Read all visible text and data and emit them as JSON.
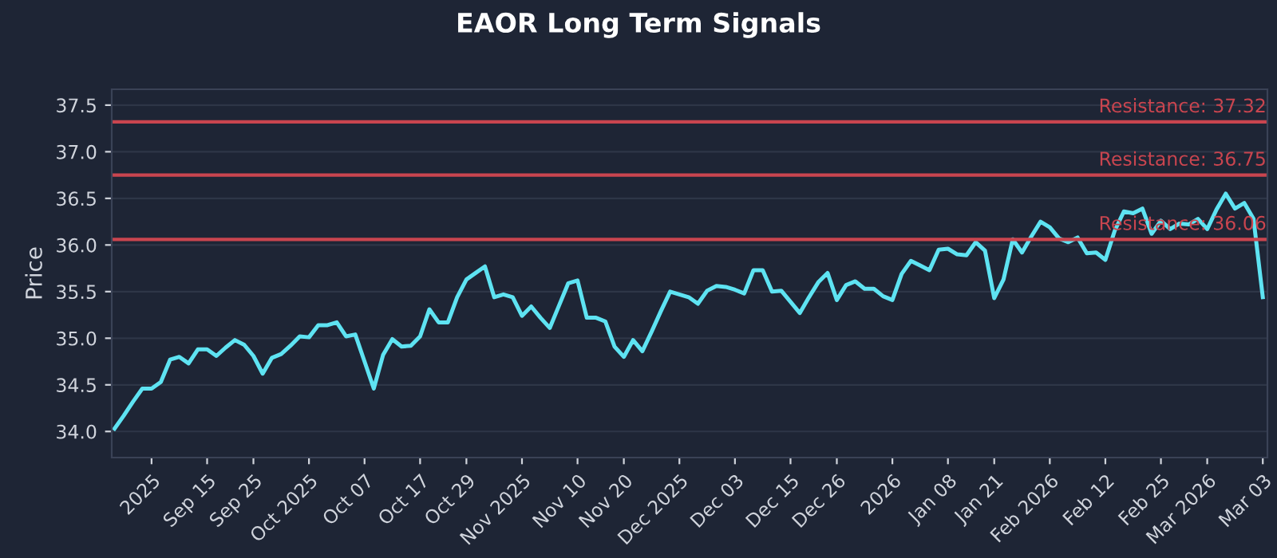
{
  "chart_data": {
    "type": "line",
    "title": "EAOR Long Term Signals",
    "ylabel": "Price",
    "categories": [
      null,
      null,
      null,
      null,
      "2025",
      null,
      null,
      null,
      null,
      null,
      "Sep 15",
      null,
      null,
      null,
      null,
      "Sep 25",
      null,
      null,
      null,
      null,
      null,
      "Oct 2025",
      null,
      null,
      null,
      null,
      null,
      "Oct 07",
      null,
      null,
      null,
      null,
      null,
      "Oct 17",
      null,
      null,
      null,
      null,
      "Oct 29",
      null,
      null,
      null,
      null,
      null,
      "Nov 2025",
      null,
      null,
      null,
      null,
      null,
      "Nov 10",
      null,
      null,
      null,
      null,
      "Nov 20",
      null,
      null,
      null,
      null,
      null,
      "Dec 2025",
      null,
      null,
      null,
      null,
      null,
      "Dec 03",
      null,
      null,
      null,
      null,
      null,
      "Dec 15",
      null,
      null,
      null,
      null,
      "Dec 26",
      null,
      null,
      null,
      null,
      null,
      "2026",
      null,
      null,
      null,
      null,
      null,
      "Jan 08",
      null,
      null,
      null,
      null,
      "Jan 21",
      null,
      null,
      null,
      null,
      null,
      "Feb 2026",
      null,
      null,
      null,
      null,
      null,
      "Feb 12",
      null,
      null,
      null,
      null,
      null,
      "Feb 25",
      null,
      null,
      null,
      null,
      "Mar 2026",
      null,
      null,
      null,
      null,
      null,
      "Mar 03"
    ],
    "series": [
      {
        "color": "#5ee3f2",
        "values": [
          34.03,
          34.17,
          34.32,
          34.46,
          34.46,
          34.53,
          34.77,
          34.8,
          34.73,
          34.88,
          34.88,
          34.81,
          34.9,
          34.98,
          34.93,
          34.81,
          34.62,
          34.79,
          34.83,
          34.92,
          35.02,
          35.01,
          35.14,
          35.14,
          35.17,
          35.02,
          35.04,
          34.75,
          34.46,
          34.82,
          34.99,
          34.91,
          34.92,
          35.02,
          35.31,
          35.17,
          35.17,
          35.44,
          35.63,
          35.7,
          35.77,
          35.44,
          35.47,
          35.44,
          35.24,
          35.34,
          35.22,
          35.11,
          35.35,
          35.59,
          35.62,
          35.22,
          35.22,
          35.18,
          34.91,
          34.8,
          34.98,
          34.86,
          35.07,
          35.29,
          35.5,
          35.47,
          35.44,
          35.37,
          35.51,
          35.56,
          35.55,
          35.52,
          35.48,
          35.73,
          35.73,
          35.5,
          35.51,
          35.39,
          35.27,
          35.44,
          35.6,
          35.7,
          35.41,
          35.57,
          35.61,
          35.53,
          35.53,
          35.45,
          35.41,
          35.69,
          35.83,
          35.78,
          35.73,
          35.95,
          35.96,
          35.9,
          35.89,
          36.03,
          35.94,
          35.43,
          35.63,
          36.06,
          35.92,
          36.09,
          36.25,
          36.19,
          36.07,
          36.03,
          36.08,
          35.91,
          35.92,
          35.84,
          36.15,
          36.36,
          36.34,
          36.39,
          36.12,
          36.26,
          36.17,
          36.23,
          36.22,
          36.28,
          36.17,
          36.38,
          36.55,
          36.39,
          36.45,
          36.28,
          35.44
        ]
      }
    ],
    "ylim": [
      33.72,
      37.67
    ],
    "yticks": [
      {
        "value": 34.0,
        "label": "34.0"
      },
      {
        "value": 34.5,
        "label": "34.5"
      },
      {
        "value": 35.0,
        "label": "35.0"
      },
      {
        "value": 35.5,
        "label": "35.5"
      },
      {
        "value": 36.0,
        "label": "36.0"
      },
      {
        "value": 36.5,
        "label": "36.5"
      },
      {
        "value": 37.0,
        "label": "37.0"
      },
      {
        "value": 37.5,
        "label": "37.5"
      }
    ],
    "ref_lines": [
      {
        "axis": "y",
        "value": 37.32,
        "label": "Resistance: 37.32",
        "color": "#c9454f"
      },
      {
        "axis": "y",
        "value": 36.75,
        "label": "Resistance: 36.75",
        "color": "#c9454f"
      },
      {
        "axis": "y",
        "value": 36.06,
        "label": "Resistance: 36.06",
        "color": "#c9454f"
      }
    ],
    "grid": "y",
    "marker": "none",
    "line_style": "solid"
  }
}
